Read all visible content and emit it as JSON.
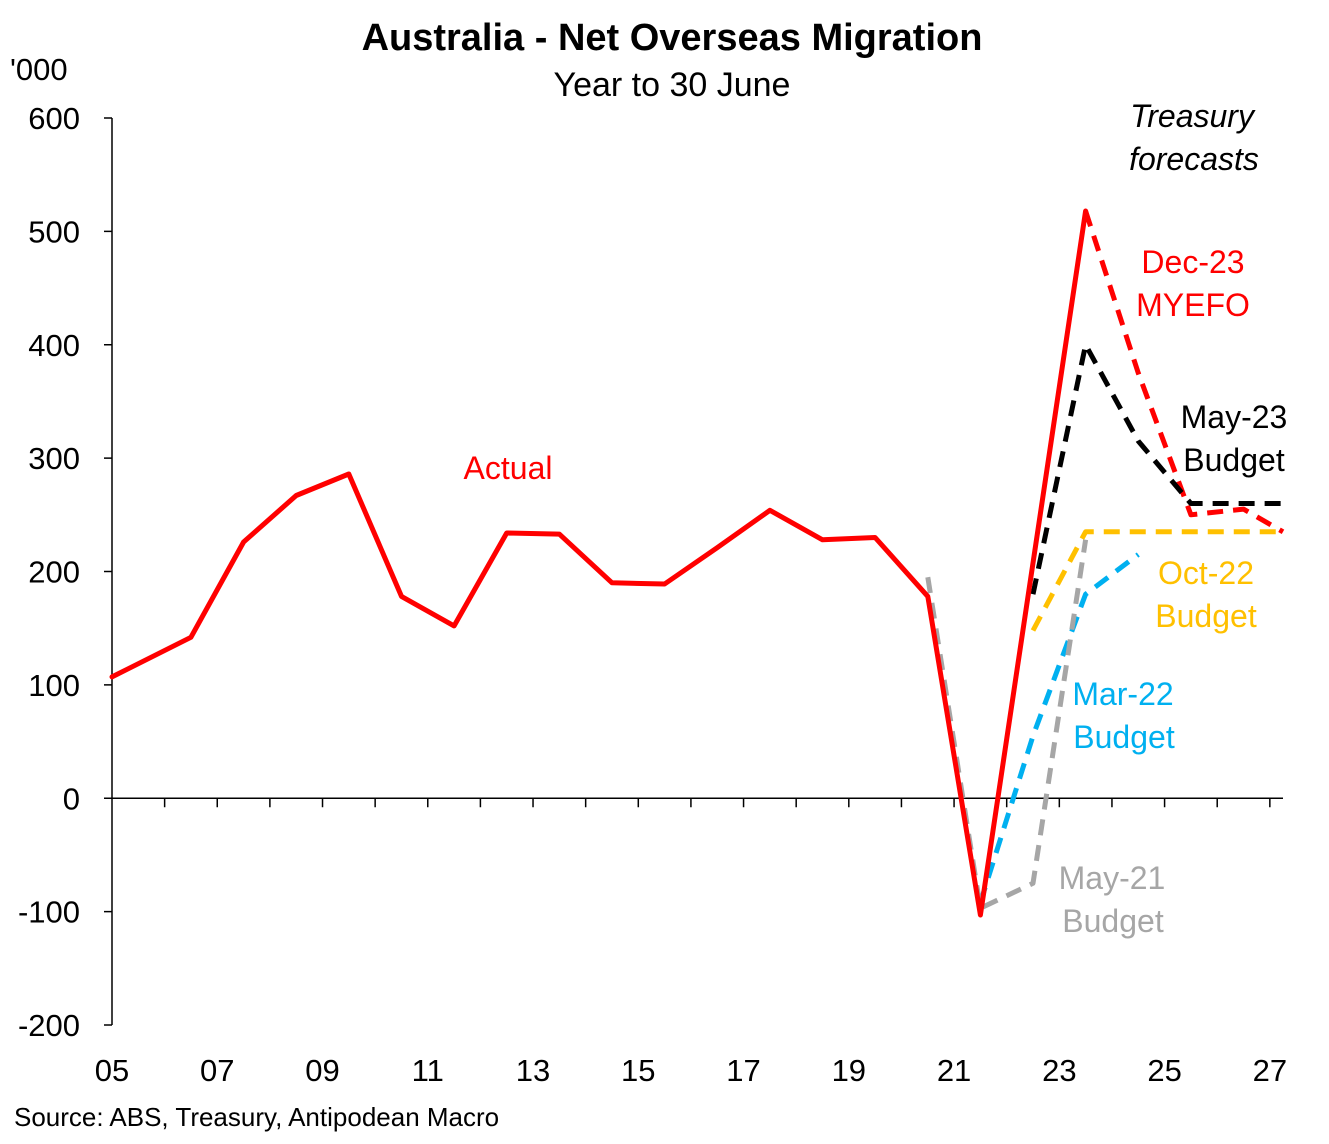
{
  "chart_data": {
    "type": "line",
    "title": "Australia - Net Overseas Migration",
    "subtitle": "Year to 30 June",
    "ylabel": "'000",
    "ylim": [
      -200,
      600
    ],
    "yticks": [
      "600",
      "500",
      "400",
      "300",
      "200",
      "100",
      "0",
      "-100",
      "-200"
    ],
    "xlim": [
      2005,
      2027.25
    ],
    "xticks": [
      "05",
      "07",
      "09",
      "11",
      "13",
      "15",
      "17",
      "19",
      "21",
      "23",
      "25",
      "27"
    ],
    "series": [
      {
        "name": "Actual",
        "color": "#ff0000",
        "style": "solid",
        "points": [
          [
            2005,
            107
          ],
          [
            2006.5,
            142
          ],
          [
            2007.5,
            226
          ],
          [
            2008.5,
            267
          ],
          [
            2009.5,
            286
          ],
          [
            2010.5,
            178
          ],
          [
            2011.5,
            152
          ],
          [
            2012.5,
            234
          ],
          [
            2013.5,
            233
          ],
          [
            2014.5,
            190
          ],
          [
            2015.5,
            189
          ],
          [
            2016.5,
            221
          ],
          [
            2017.5,
            254
          ],
          [
            2018.5,
            228
          ],
          [
            2019.5,
            230
          ],
          [
            2020.5,
            178
          ],
          [
            2021.5,
            -103
          ],
          [
            2023.5,
            518
          ]
        ]
      },
      {
        "name": "Dec-23 MYEFO",
        "color": "#ff0000",
        "style": "dashed",
        "points": [
          [
            2023.5,
            518
          ],
          [
            2024.5,
            375
          ],
          [
            2025.5,
            250
          ],
          [
            2026.5,
            255
          ],
          [
            2027.25,
            235
          ]
        ]
      },
      {
        "name": "May-23 Budget",
        "color": "#000000",
        "style": "dashed",
        "points": [
          [
            2022.5,
            180
          ],
          [
            2023.5,
            400
          ],
          [
            2024.5,
            315
          ],
          [
            2025.5,
            260
          ],
          [
            2027.25,
            260
          ]
        ]
      },
      {
        "name": "Oct-22 Budget",
        "color": "#ffc000",
        "style": "dashed",
        "points": [
          [
            2022.5,
            148
          ],
          [
            2023.5,
            235
          ],
          [
            2027.25,
            235
          ]
        ]
      },
      {
        "name": "Mar-22 Budget",
        "color": "#00b0f0",
        "style": "dashed",
        "points": [
          [
            2021.5,
            -92
          ],
          [
            2022.5,
            55
          ],
          [
            2023.5,
            180
          ],
          [
            2024.5,
            215
          ]
        ]
      },
      {
        "name": "May-21 Budget",
        "color": "#a6a6a6",
        "style": "dashed",
        "points": [
          [
            2020.5,
            195
          ],
          [
            2021.5,
            -97
          ],
          [
            2022.5,
            -75
          ],
          [
            2023.5,
            228
          ]
        ]
      }
    ],
    "annotations": [
      {
        "text": "Treasury",
        "color": "#000000",
        "italic": true
      },
      {
        "text": "forecasts",
        "color": "#000000",
        "italic": true
      },
      {
        "text": "Actual",
        "color": "#ff0000"
      },
      {
        "text": "Dec-23",
        "color": "#ff0000"
      },
      {
        "text": "MYEFO",
        "color": "#ff0000"
      },
      {
        "text": "May-23",
        "color": "#000000"
      },
      {
        "text": "Budget",
        "color": "#000000"
      },
      {
        "text": "Oct-22",
        "color": "#ffc000"
      },
      {
        "text": "Budget",
        "color": "#ffc000"
      },
      {
        "text": "Mar-22",
        "color": "#00b0f0"
      },
      {
        "text": "Budget",
        "color": "#00b0f0"
      },
      {
        "text": "May-21",
        "color": "#a6a6a6"
      },
      {
        "text": "Budget",
        "color": "#a6a6a6"
      }
    ],
    "source": "Source: ABS, Treasury, Antipodean Macro"
  }
}
